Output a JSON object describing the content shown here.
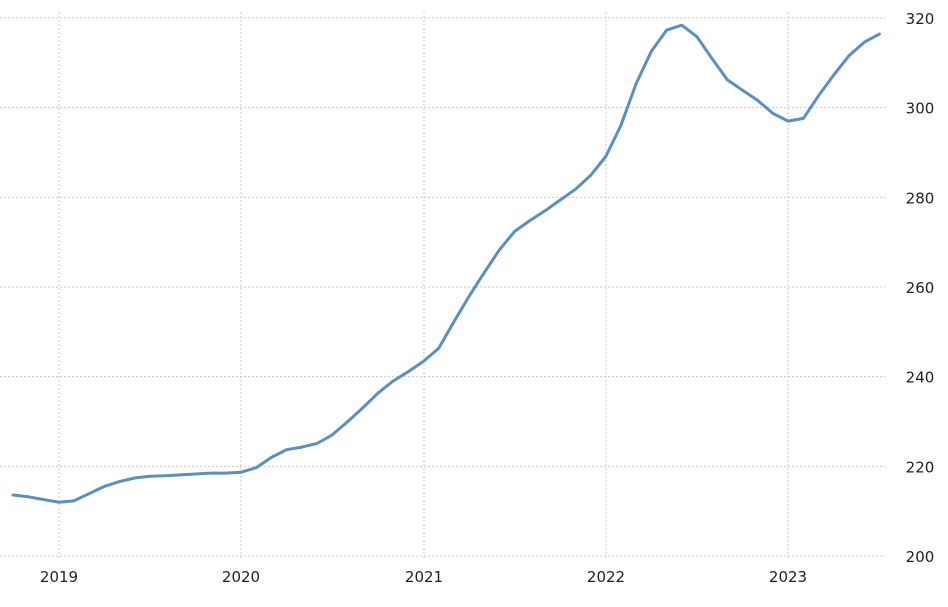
{
  "chart_data": {
    "type": "line",
    "title": "",
    "xlabel": "",
    "ylabel": "",
    "x_ticks": [
      "2019",
      "2020",
      "2021",
      "2022",
      "2023"
    ],
    "y_ticks": [
      "200",
      "220",
      "240",
      "260",
      "280",
      "300",
      "320"
    ],
    "ylim": [
      200,
      320
    ],
    "xlim": [
      "2018-09",
      "2023-07"
    ],
    "grid": true,
    "colors": {
      "line": "#5a8fc0",
      "grid": "#c8c8c8"
    },
    "series": [
      {
        "x": [
          "2018-10",
          "2018-11",
          "2018-12",
          "2019-01",
          "2019-02",
          "2019-03",
          "2019-04",
          "2019-05",
          "2019-06",
          "2019-07",
          "2019-08",
          "2019-09",
          "2019-10",
          "2019-11",
          "2019-12",
          "2020-01",
          "2020-02",
          "2020-03",
          "2020-04",
          "2020-05",
          "2020-06",
          "2020-07",
          "2020-08",
          "2020-09",
          "2020-10",
          "2020-11",
          "2020-12",
          "2021-01",
          "2021-02",
          "2021-03",
          "2021-04",
          "2021-05",
          "2021-06",
          "2021-07",
          "2021-08",
          "2021-09",
          "2021-10",
          "2021-11",
          "2021-12",
          "2022-01",
          "2022-02",
          "2022-03",
          "2022-04",
          "2022-05",
          "2022-06",
          "2022-07",
          "2022-08",
          "2022-09",
          "2022-10",
          "2022-11",
          "2022-12",
          "2023-01",
          "2023-02",
          "2023-03",
          "2023-04",
          "2023-05",
          "2023-06",
          "2023-07"
        ],
        "values": [
          213.6,
          213.2,
          212.6,
          212.0,
          212.3,
          213.9,
          215.5,
          216.6,
          217.4,
          217.8,
          217.9,
          218.1,
          218.3,
          218.5,
          218.5,
          218.7,
          219.7,
          222.0,
          223.7,
          224.3,
          225.1,
          227.0,
          229.9,
          233.0,
          236.3,
          239.0,
          241.1,
          243.4,
          246.3,
          252.2,
          257.9,
          263.2,
          268.3,
          272.4,
          274.8,
          277.0,
          279.4,
          281.8,
          284.9,
          289.1,
          296.1,
          305.4,
          312.6,
          317.3,
          318.4,
          315.8,
          310.9,
          306.2,
          303.9,
          301.6,
          298.7,
          297.0,
          297.6,
          302.7,
          307.3,
          311.6,
          314.6,
          316.4
        ]
      }
    ]
  }
}
